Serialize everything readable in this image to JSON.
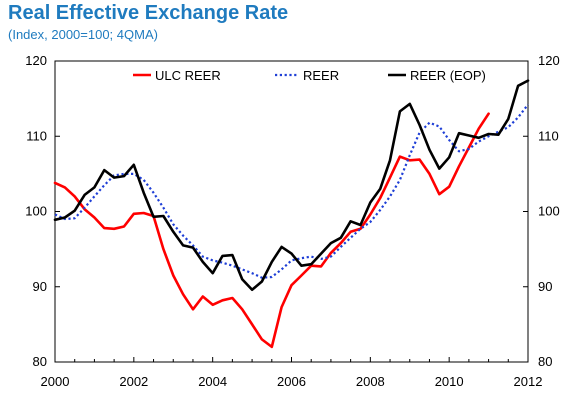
{
  "header": {
    "title": "Real Effective Exchange Rate",
    "subtitle": "(Index, 2000=100; 4QMA)"
  },
  "chart_data": {
    "type": "line",
    "title": "Real Effective Exchange Rate",
    "subtitle": "(Index, 2000=100; 4QMA)",
    "xlabel": "",
    "ylabel": "",
    "xlim": [
      2000,
      2012
    ],
    "ylim": [
      80,
      120
    ],
    "x_ticks": [
      "2000",
      "2002",
      "2004",
      "2006",
      "2008",
      "2010",
      "2012"
    ],
    "y_ticks": [
      "80",
      "90",
      "100",
      "110",
      "120"
    ],
    "legend_position": "top",
    "grid": false,
    "series": [
      {
        "name": "ULC REER",
        "color": "#ff0000",
        "style": "solid",
        "x": [
          2000,
          2000.25,
          2000.5,
          2000.75,
          2001,
          2001.25,
          2001.5,
          2001.75,
          2002,
          2002.25,
          2002.5,
          2002.75,
          2003,
          2003.25,
          2003.5,
          2003.75,
          2004,
          2004.25,
          2004.5,
          2004.75,
          2005,
          2005.25,
          2005.5,
          2005.75,
          2006,
          2006.25,
          2006.5,
          2006.75,
          2007,
          2007.25,
          2007.5,
          2007.75,
          2008,
          2008.25,
          2008.5,
          2008.75,
          2009,
          2009.25,
          2009.5,
          2009.75,
          2010,
          2010.25,
          2010.5,
          2010.75,
          2011
        ],
        "values": [
          103.8,
          103.2,
          102.0,
          100.3,
          99.2,
          97.8,
          97.7,
          98.0,
          99.7,
          99.8,
          99.4,
          95.0,
          91.5,
          89.0,
          87.0,
          88.7,
          87.6,
          88.2,
          88.5,
          87.0,
          85.0,
          83.0,
          82.0,
          87.3,
          90.2,
          91.5,
          92.8,
          92.7,
          94.5,
          95.8,
          97.3,
          97.7,
          99.6,
          101.8,
          104.5,
          107.3,
          106.8,
          106.9,
          105.0,
          102.3,
          103.3,
          106.0,
          108.5,
          111.0,
          113.0
        ]
      },
      {
        "name": "REER",
        "color": "#1f3fd6",
        "style": "dotted",
        "x": [
          2000,
          2000.25,
          2000.5,
          2000.75,
          2001,
          2001.25,
          2001.5,
          2001.75,
          2002,
          2002.25,
          2002.5,
          2002.75,
          2003,
          2003.25,
          2003.5,
          2003.75,
          2004,
          2004.25,
          2004.5,
          2004.75,
          2005,
          2005.25,
          2005.5,
          2005.75,
          2006,
          2006.25,
          2006.5,
          2006.75,
          2007,
          2007.25,
          2007.5,
          2007.75,
          2008,
          2008.25,
          2008.5,
          2008.75,
          2009,
          2009.25,
          2009.5,
          2009.75,
          2010,
          2010.25,
          2010.5,
          2010.75,
          2011,
          2011.25,
          2011.5,
          2011.75,
          2012
        ],
        "values": [
          99.6,
          99.0,
          99.1,
          100.5,
          102.0,
          103.5,
          104.8,
          105.0,
          105.0,
          104.2,
          102.5,
          100.5,
          98.3,
          96.8,
          95.5,
          94.0,
          93.5,
          93.2,
          92.8,
          92.3,
          91.8,
          91.2,
          91.3,
          92.3,
          93.5,
          93.8,
          94.0,
          93.7,
          94.0,
          95.3,
          96.5,
          97.7,
          98.6,
          100.2,
          102.0,
          104.2,
          107.5,
          110.5,
          111.8,
          111.3,
          109.5,
          108.0,
          108.3,
          109.3,
          110.0,
          110.6,
          111.2,
          112.5,
          114.2
        ]
      },
      {
        "name": "REER (EOP)",
        "color": "#000000",
        "style": "solid",
        "x": [
          2000,
          2000.25,
          2000.5,
          2000.75,
          2001,
          2001.25,
          2001.5,
          2001.75,
          2002,
          2002.25,
          2002.5,
          2002.75,
          2003,
          2003.25,
          2003.5,
          2003.75,
          2004,
          2004.25,
          2004.5,
          2004.75,
          2005,
          2005.25,
          2005.5,
          2005.75,
          2006,
          2006.25,
          2006.5,
          2006.75,
          2007,
          2007.25,
          2007.5,
          2007.75,
          2008,
          2008.25,
          2008.5,
          2008.75,
          2009,
          2009.25,
          2009.5,
          2009.75,
          2010,
          2010.25,
          2010.5,
          2010.75,
          2011,
          2011.25,
          2011.5,
          2011.75,
          2012
        ],
        "values": [
          98.9,
          99.2,
          100.1,
          102.2,
          103.2,
          105.5,
          104.5,
          104.7,
          106.2,
          102.5,
          99.3,
          99.4,
          97.3,
          95.5,
          95.2,
          93.3,
          91.8,
          94.1,
          94.2,
          91.0,
          89.6,
          90.7,
          93.3,
          95.3,
          94.4,
          92.8,
          93.0,
          94.4,
          95.8,
          96.5,
          98.7,
          98.2,
          101.2,
          103.0,
          106.8,
          113.3,
          114.3,
          111.5,
          108.2,
          105.7,
          107.2,
          110.4,
          110.1,
          109.8,
          110.3,
          110.2,
          112.3,
          116.7,
          117.4
        ]
      }
    ]
  }
}
